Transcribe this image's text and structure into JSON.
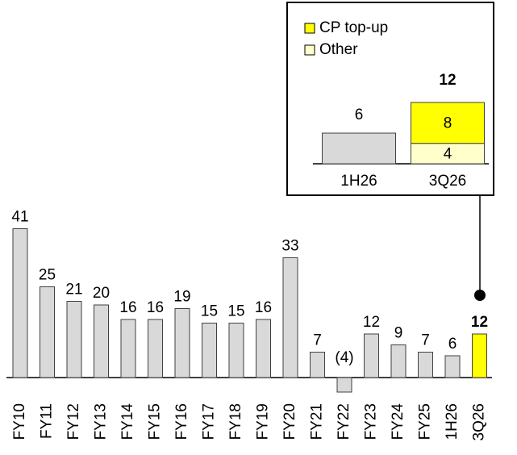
{
  "chart_data": [
    {
      "type": "bar",
      "categories": [
        "FY10",
        "FY11",
        "FY12",
        "FY13",
        "FY14",
        "FY15",
        "FY16",
        "FY17",
        "FY18",
        "FY19",
        "FY20",
        "FY21",
        "FY22",
        "FY23",
        "FY24",
        "FY25",
        "1H26",
        "3Q26"
      ],
      "values": [
        41,
        25,
        21,
        20,
        16,
        16,
        19,
        15,
        15,
        16,
        33,
        7,
        -4,
        12,
        9,
        7,
        6,
        12
      ],
      "value_labels": [
        "41",
        "25",
        "21",
        "20",
        "16",
        "16",
        "19",
        "15",
        "15",
        "16",
        "33",
        "7",
        "(4)",
        "12",
        "9",
        "7",
        "6",
        "12"
      ],
      "colors": [
        "#d9d9d9",
        "#d9d9d9",
        "#d9d9d9",
        "#d9d9d9",
        "#d9d9d9",
        "#d9d9d9",
        "#d9d9d9",
        "#d9d9d9",
        "#d9d9d9",
        "#d9d9d9",
        "#d9d9d9",
        "#d9d9d9",
        "#d9d9d9",
        "#d9d9d9",
        "#d9d9d9",
        "#d9d9d9",
        "#d9d9d9",
        "#ffff00"
      ]
    },
    {
      "type": "stacked_bar",
      "categories": [
        "1H26",
        "3Q26"
      ],
      "values": [
        6,
        null
      ],
      "color": "#d9d9d9",
      "series": [
        {
          "name": "CP top-up",
          "color": "#ffff00",
          "values": [
            null,
            8
          ]
        },
        {
          "name": "Other",
          "color": "#ffffcc",
          "values": [
            null,
            4
          ]
        }
      ],
      "totals": [
        null,
        12
      ]
    }
  ]
}
